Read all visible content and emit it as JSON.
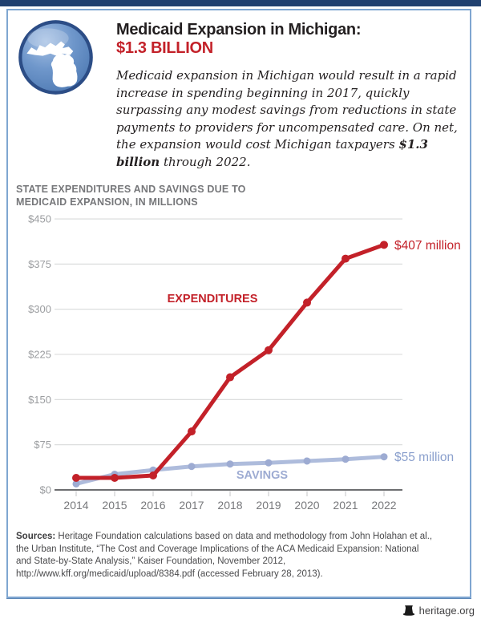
{
  "header": {
    "title_line1": "Medicaid Expansion in Michigan:",
    "title_line2": "$1.3 BILLION",
    "paragraph_before": "Medicaid expansion in Michigan would result in a rapid increase in spending beginning in 2017, quickly surpassing any modest savings from reductions in state payments to providers for uncompensated care. On net, the expansion would cost Michigan taxpayers ",
    "paragraph_bold": "$1.3 billion",
    "paragraph_after": " through 2022.",
    "icon": "michigan-state-globe-icon",
    "accent_red": "#c32129",
    "navy": "#20406f"
  },
  "chart": {
    "title_line1": "STATE EXPENDITURES AND SAVINGS DUE TO",
    "title_line2": "MEDICAID EXPANSION, IN MILLIONS"
  },
  "chart_data": {
    "type": "line",
    "title": "State Expenditures and Savings Due to Medicaid Expansion, in Millions",
    "xlabel": "",
    "ylabel": "",
    "x": [
      2014,
      2015,
      2016,
      2017,
      2018,
      2019,
      2020,
      2021,
      2022
    ],
    "y_ticks": [
      0,
      75,
      150,
      225,
      300,
      375,
      450
    ],
    "y_tick_labels": [
      "$0",
      "$75",
      "$150",
      "$225",
      "$300",
      "$375",
      "$450"
    ],
    "ylim": [
      0,
      450
    ],
    "grid": true,
    "legend_position": "inline-labels",
    "series": [
      {
        "name": "EXPENDITURES",
        "color": "#c32129",
        "marker_color": "#c32129",
        "values": [
          20,
          20,
          24,
          97,
          187,
          232,
          311,
          384,
          407
        ],
        "end_label": "$407 million",
        "label_pos": {
          "x": 265,
          "y": 117
        }
      },
      {
        "name": "SAVINGS",
        "color": "#aebcdc",
        "marker_color": "#9dabd2",
        "values": [
          10,
          26,
          33,
          39,
          43,
          45,
          48,
          51,
          55
        ],
        "end_label": "$55 million",
        "label_pos": {
          "x": 327,
          "y": 337
        }
      }
    ]
  },
  "sources": {
    "label": "Sources:",
    "lines": [
      "Heritage Foundation calculations based on data and methodology from John Holahan et al.,",
      "the Urban Institute, “The Cost and Coverage Implications of the ACA Medicaid Expansion: National",
      "and State-by-State Analysis,” Kaiser Foundation, November 2012,",
      "http://www.kff.org/medicaid/upload/8384.pdf (accessed February 28, 2013)."
    ]
  },
  "footer": {
    "site": "heritage.org",
    "logo": "liberty-bell-icon"
  }
}
